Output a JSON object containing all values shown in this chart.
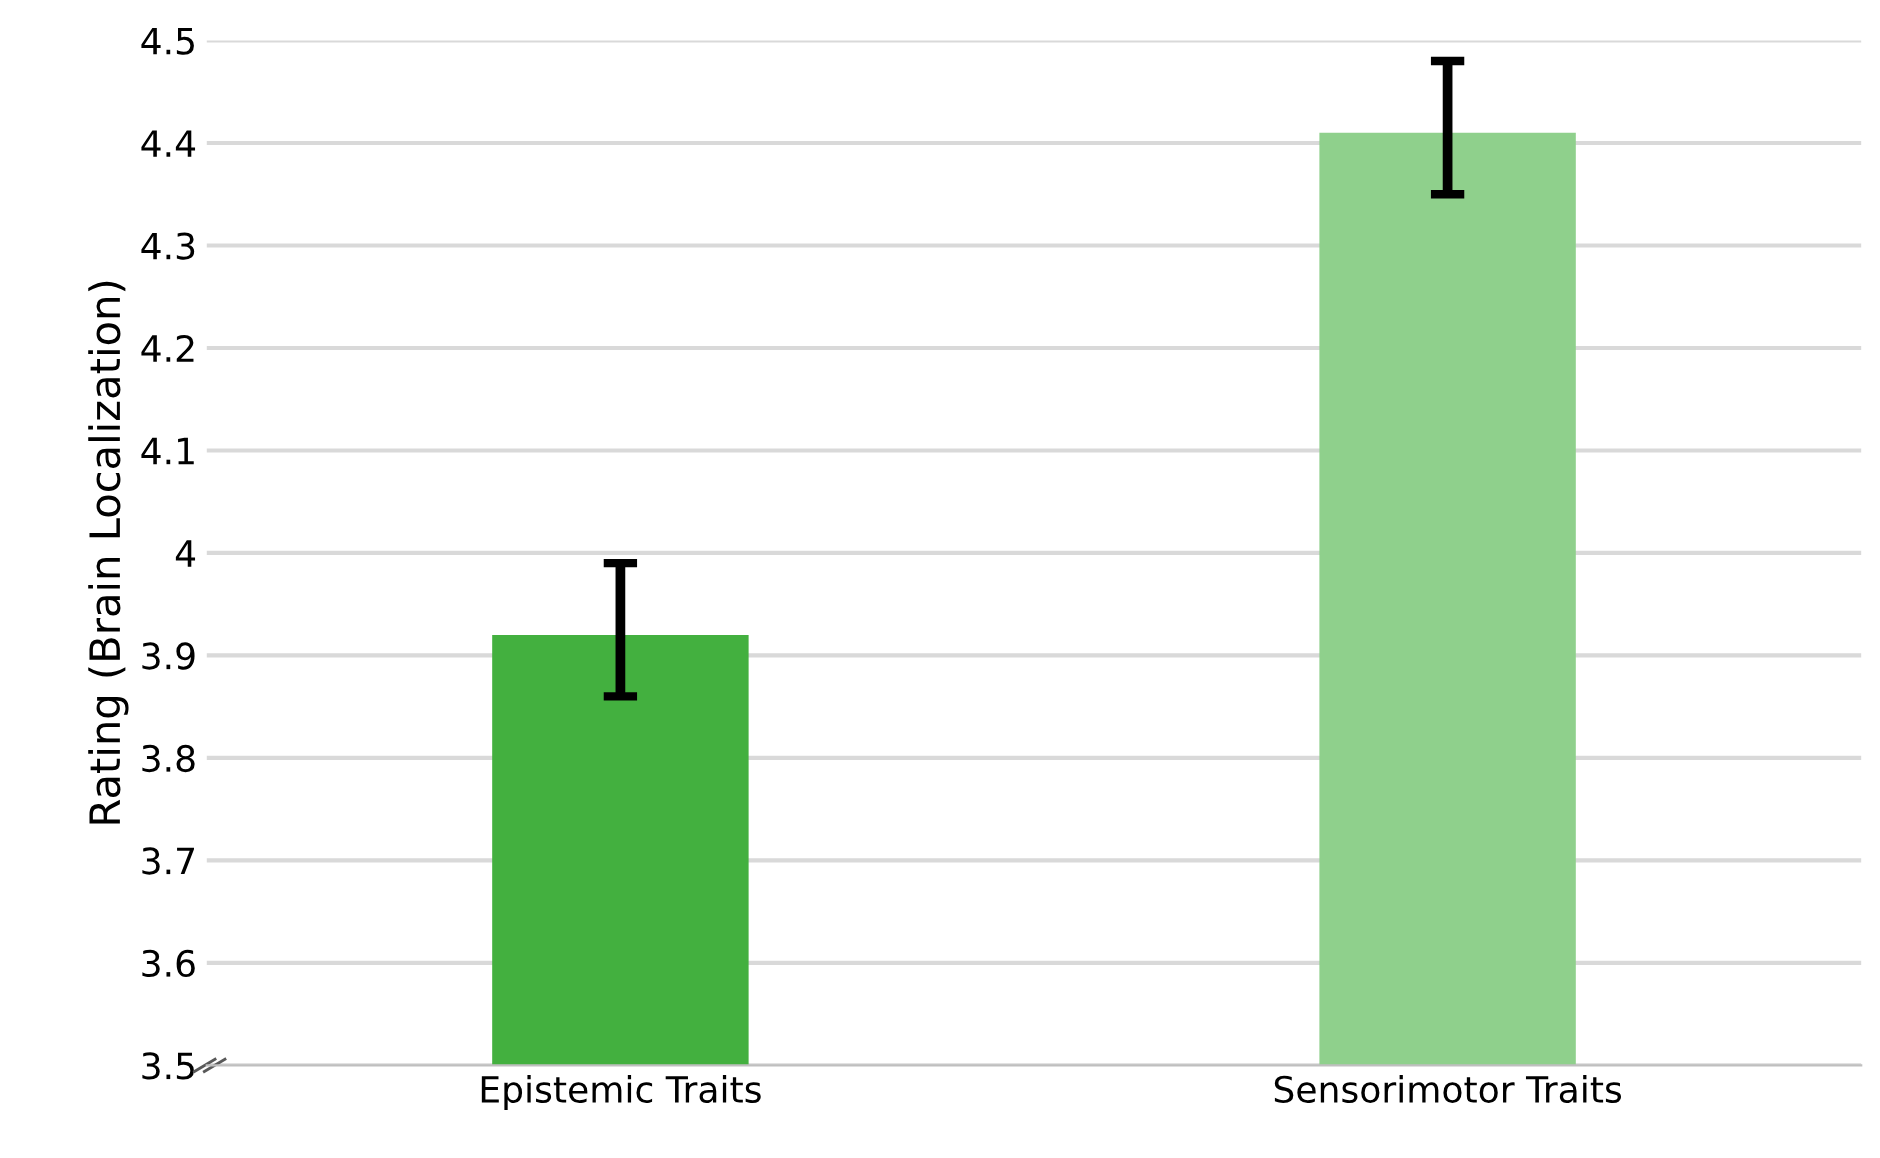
{
  "chart_data": {
    "type": "bar",
    "ylabel": "Rating (Brain Localization)",
    "categories": [
      "Epistemic Traits",
      "Sensorimotor Traits"
    ],
    "values": [
      3.92,
      4.41
    ],
    "errors": [
      [
        3.86,
        3.99
      ],
      [
        4.35,
        4.48
      ]
    ],
    "colors": [
      "#43b03f",
      "#8fd08c"
    ],
    "ylim": [
      3.5,
      4.5
    ],
    "yticks": [
      3.5,
      3.6,
      3.7,
      3.8,
      3.9,
      4,
      4.1,
      4.2,
      4.3,
      4.4,
      4.5
    ],
    "grid": "y",
    "legend": false
  }
}
